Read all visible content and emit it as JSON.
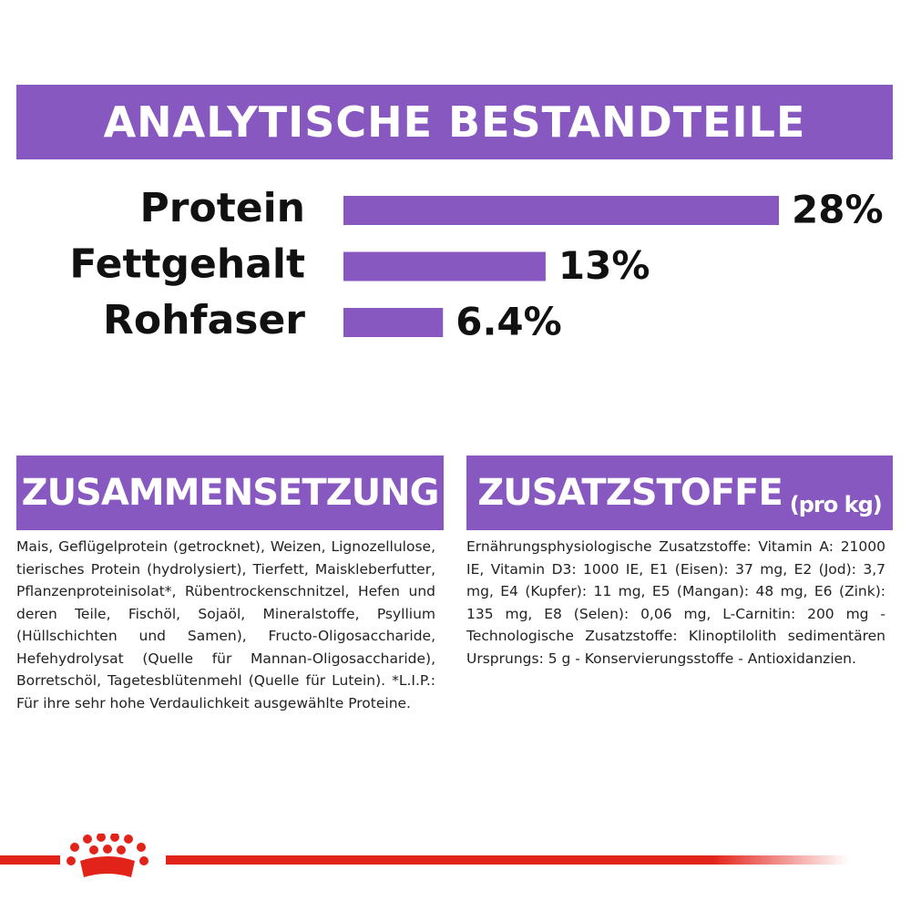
{
  "chart_data": {
    "type": "bar",
    "title": "ANALYTISCHE BESTANDTEILE",
    "categories": [
      "Protein",
      "Fettgehalt",
      "Rohfaser"
    ],
    "values": [
      28,
      13,
      6.4
    ],
    "value_labels": [
      "28%",
      "13%",
      "6.4%"
    ],
    "color": "#8759c0"
  },
  "sections": [
    {
      "title": "ZUSAMMENSETZUNG",
      "text": "Mais, Geflügelprotein (getrocknet), Weizen, Lignozellulose, tierisches Protein (hydrolysiert), Tierfett, Maiskleberfutter, Pflanzenproteinisolat*, Rübentrockenschnitzel, Hefen und deren Teile, Fischöl, Sojaöl, Mineralstoffe, Psyllium (Hüllschichten und Samen), Fructo-Oligosaccharide, Hefehydrolysat (Quelle für Mannan-Oligosaccharide), Borretschöl, Tagetesblütenmehl (Quelle für Lutein). *L.I.P.: Für ihre sehr hohe Verdaulichkeit ausgewählte Proteine."
    },
    {
      "title": "ZUSATZSTOFFE",
      "subtitle": "(pro kg)",
      "text": "Ernährungsphysiologische Zusatzstoffe: Vitamin A: 21000 IE, Vitamin D3: 1000 IE, E1 (Eisen): 37 mg, E2 (Jod): 3,7 mg, E4 (Kupfer): 11 mg, E5 (Mangan): 48 mg, E6 (Zink): 135 mg, E8 (Selen): 0,06 mg, L-Carnitin: 200 mg - Technologische Zusatzstoffe: Klinoptilolith sedimentären Ursprungs: 5 g - Konservierungsstoffe - Antioxidanzien."
    }
  ]
}
